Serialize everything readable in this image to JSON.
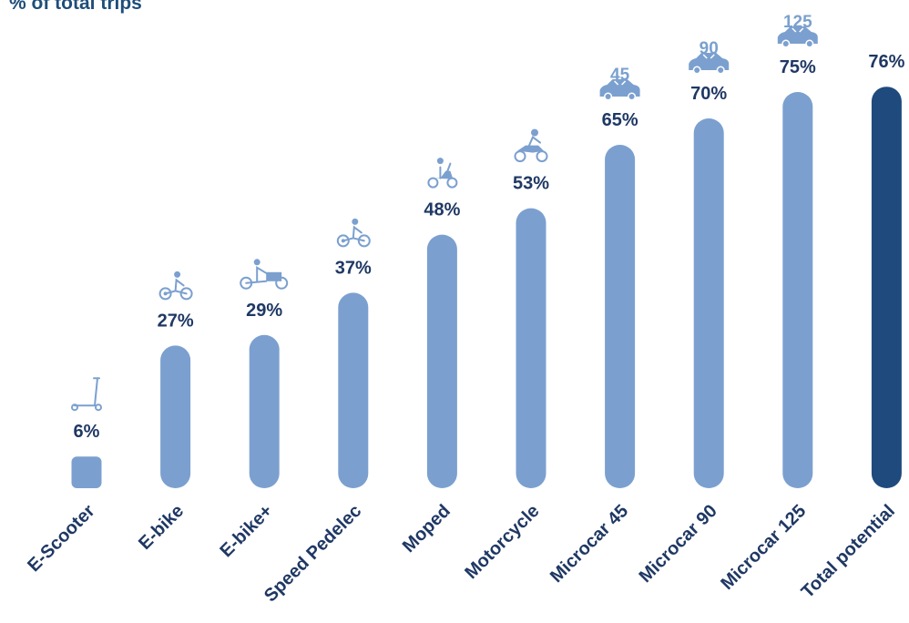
{
  "subtitle": "% of total trips",
  "chart_data": {
    "type": "bar",
    "ylabel": "% of total trips",
    "ylim": [
      0,
      80
    ],
    "grid": false,
    "legend": "none",
    "colors": {
      "bar": "#7ba0cf",
      "highlight": "#1f4a7d",
      "label": "#1f3864",
      "icon": "#7ba0cf"
    },
    "categories": [
      "E-Scooter",
      "E-bike",
      "E-bike+",
      "Speed Pedelec",
      "Moped",
      "Motorcycle",
      "Microcar  45",
      "Microcar 90",
      "Microcar 125",
      "Total potential"
    ],
    "values": [
      6,
      27,
      29,
      37,
      48,
      53,
      65,
      70,
      75,
      76
    ],
    "value_labels": [
      "6%",
      "27%",
      "29%",
      "37%",
      "48%",
      "53%",
      "65%",
      "70%",
      "75%",
      "76%"
    ],
    "icons": [
      "scooter-icon",
      "bike-icon",
      "cargo-bike-icon",
      "bike-icon",
      "moped-icon",
      "motorcycle-icon",
      "car-icon",
      "car-icon",
      "car-icon",
      ""
    ],
    "icon_labels": [
      "",
      "",
      "",
      "",
      "",
      "",
      "45",
      "90",
      "125",
      ""
    ],
    "highlight_index": 9
  }
}
